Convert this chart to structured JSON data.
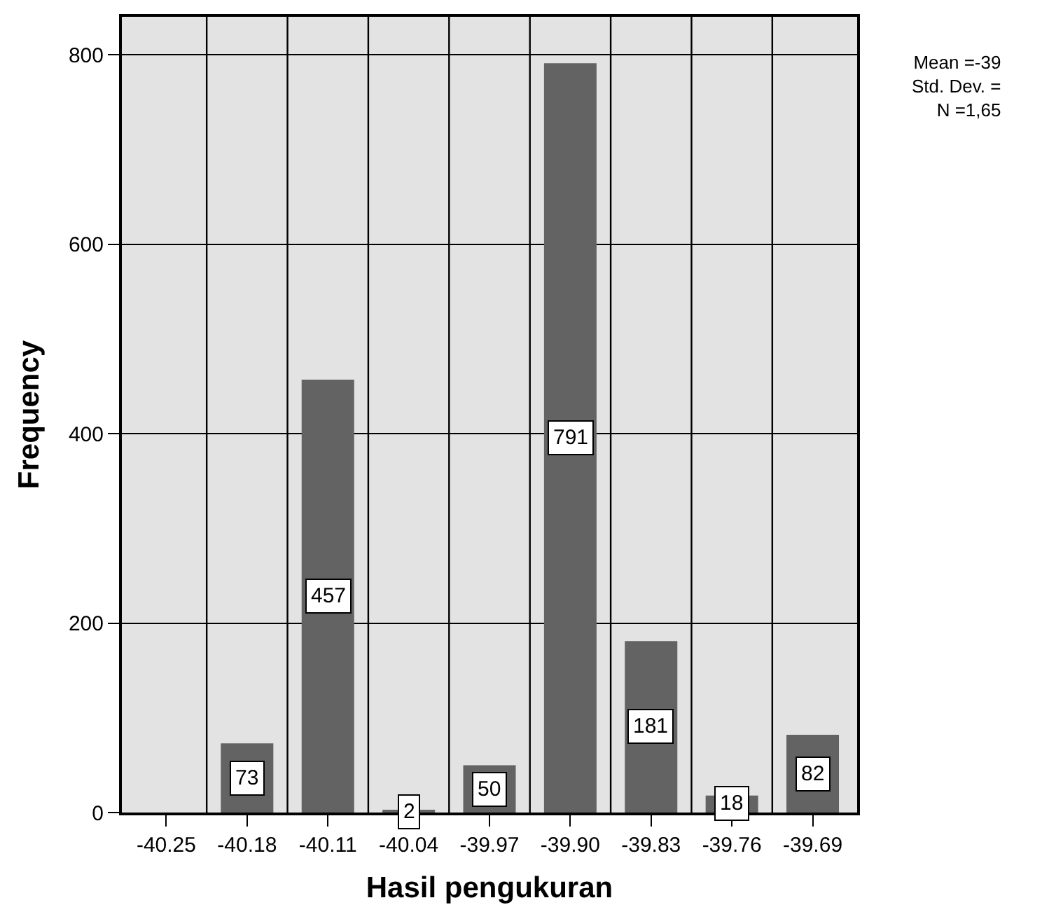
{
  "chart_data": {
    "type": "bar",
    "xlabel": "Hasil pengukuran",
    "ylabel": "Frequency",
    "categories": [
      "-40.25",
      "-40.18",
      "-40.11",
      "-40.04",
      "-39.97",
      "-39.90",
      "-39.83",
      "-39.76",
      "-39.69"
    ],
    "values": [
      null,
      73,
      457,
      2,
      50,
      791,
      181,
      18,
      82
    ],
    "color": "#636363",
    "ylim": [
      0,
      840
    ],
    "yticks": [
      0,
      200,
      400,
      600,
      800
    ],
    "grid": true,
    "data_labels": true,
    "annotations": [
      "Mean =-39",
      "Std. Dev. =",
      "N =1,65"
    ]
  }
}
